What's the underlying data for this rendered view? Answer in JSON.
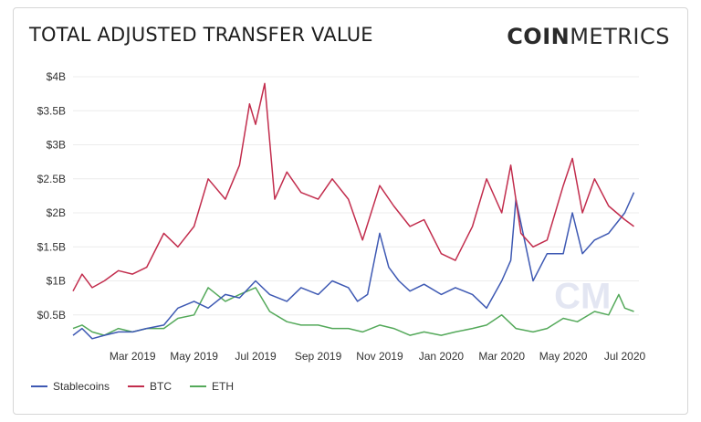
{
  "header": {
    "title": "TOTAL ADJUSTED TRANSFER VALUE",
    "brand_bold": "COIN",
    "brand_regular": "METRICS"
  },
  "watermark": "CM",
  "chart_data": {
    "type": "line",
    "title": "TOTAL ADJUSTED TRANSFER VALUE",
    "xlabel": "",
    "ylabel": "",
    "x_range": [
      "2019-01-01",
      "2020-07-15"
    ],
    "ylim": [
      0,
      4000000000
    ],
    "y_ticks": [
      {
        "value": 500000000,
        "label": "$0.5B"
      },
      {
        "value": 1000000000,
        "label": "$1B"
      },
      {
        "value": 1500000000,
        "label": "$1.5B"
      },
      {
        "value": 2000000000,
        "label": "$2B"
      },
      {
        "value": 2500000000,
        "label": "$2.5B"
      },
      {
        "value": 3000000000,
        "label": "$3B"
      },
      {
        "value": 3500000000,
        "label": "$3.5B"
      },
      {
        "value": 4000000000,
        "label": "$4B"
      }
    ],
    "x_ticks": [
      {
        "date": "2019-03-01",
        "label": "Mar 2019"
      },
      {
        "date": "2019-05-01",
        "label": "May 2019"
      },
      {
        "date": "2019-07-01",
        "label": "Jul 2019"
      },
      {
        "date": "2019-09-01",
        "label": "Sep 2019"
      },
      {
        "date": "2019-11-01",
        "label": "Nov 2019"
      },
      {
        "date": "2020-01-01",
        "label": "Jan 2020"
      },
      {
        "date": "2020-03-01",
        "label": "Mar 2020"
      },
      {
        "date": "2020-05-01",
        "label": "May 2020"
      },
      {
        "date": "2020-07-01",
        "label": "Jul 2020"
      }
    ],
    "grid": true,
    "legend_position": "bottom-left",
    "series": [
      {
        "name": "Stablecoins",
        "color": "#3e59b3",
        "x": [
          "2019-01-01",
          "2019-01-10",
          "2019-01-20",
          "2019-02-01",
          "2019-02-15",
          "2019-03-01",
          "2019-03-15",
          "2019-04-01",
          "2019-04-15",
          "2019-05-01",
          "2019-05-15",
          "2019-06-01",
          "2019-06-15",
          "2019-07-01",
          "2019-07-15",
          "2019-08-01",
          "2019-08-15",
          "2019-09-01",
          "2019-09-15",
          "2019-10-01",
          "2019-10-10",
          "2019-10-20",
          "2019-11-01",
          "2019-11-10",
          "2019-11-20",
          "2019-12-01",
          "2019-12-15",
          "2020-01-01",
          "2020-01-15",
          "2020-02-01",
          "2020-02-15",
          "2020-03-01",
          "2020-03-10",
          "2020-03-15",
          "2020-03-25",
          "2020-04-01",
          "2020-04-15",
          "2020-05-01",
          "2020-05-10",
          "2020-05-20",
          "2020-06-01",
          "2020-06-15",
          "2020-07-01",
          "2020-07-10"
        ],
        "values": [
          200000000,
          300000000,
          150000000,
          200000000,
          250000000,
          250000000,
          300000000,
          350000000,
          600000000,
          700000000,
          600000000,
          800000000,
          750000000,
          1000000000,
          800000000,
          700000000,
          900000000,
          800000000,
          1000000000,
          900000000,
          700000000,
          800000000,
          1700000000,
          1200000000,
          1000000000,
          850000000,
          950000000,
          800000000,
          900000000,
          800000000,
          600000000,
          1000000000,
          1300000000,
          2200000000,
          1500000000,
          1000000000,
          1400000000,
          1400000000,
          2000000000,
          1400000000,
          1600000000,
          1700000000,
          2000000000,
          2300000000
        ]
      },
      {
        "name": "BTC",
        "color": "#c22d4d",
        "x": [
          "2019-01-01",
          "2019-01-10",
          "2019-01-20",
          "2019-02-01",
          "2019-02-15",
          "2019-03-01",
          "2019-03-15",
          "2019-04-01",
          "2019-04-15",
          "2019-05-01",
          "2019-05-15",
          "2019-06-01",
          "2019-06-15",
          "2019-06-25",
          "2019-07-01",
          "2019-07-10",
          "2019-07-20",
          "2019-08-01",
          "2019-08-15",
          "2019-09-01",
          "2019-09-15",
          "2019-10-01",
          "2019-10-15",
          "2019-11-01",
          "2019-11-15",
          "2019-12-01",
          "2019-12-15",
          "2020-01-01",
          "2020-01-15",
          "2020-02-01",
          "2020-02-15",
          "2020-03-01",
          "2020-03-10",
          "2020-03-20",
          "2020-04-01",
          "2020-04-15",
          "2020-05-01",
          "2020-05-10",
          "2020-05-20",
          "2020-06-01",
          "2020-06-15",
          "2020-07-01",
          "2020-07-10"
        ],
        "values": [
          850000000,
          1100000000,
          900000000,
          1000000000,
          1150000000,
          1100000000,
          1200000000,
          1700000000,
          1500000000,
          1800000000,
          2500000000,
          2200000000,
          2700000000,
          3600000000,
          3300000000,
          3900000000,
          2200000000,
          2600000000,
          2300000000,
          2200000000,
          2500000000,
          2200000000,
          1600000000,
          2400000000,
          2100000000,
          1800000000,
          1900000000,
          1400000000,
          1300000000,
          1800000000,
          2500000000,
          2000000000,
          2700000000,
          1700000000,
          1500000000,
          1600000000,
          2400000000,
          2800000000,
          2000000000,
          2500000000,
          2100000000,
          1900000000,
          1800000000
        ]
      },
      {
        "name": "ETH",
        "color": "#54a95a",
        "x": [
          "2019-01-01",
          "2019-01-10",
          "2019-01-20",
          "2019-02-01",
          "2019-02-15",
          "2019-03-01",
          "2019-03-15",
          "2019-04-01",
          "2019-04-15",
          "2019-05-01",
          "2019-05-15",
          "2019-06-01",
          "2019-06-15",
          "2019-07-01",
          "2019-07-15",
          "2019-08-01",
          "2019-08-15",
          "2019-09-01",
          "2019-09-15",
          "2019-10-01",
          "2019-10-15",
          "2019-11-01",
          "2019-11-15",
          "2019-12-01",
          "2019-12-15",
          "2020-01-01",
          "2020-01-15",
          "2020-02-01",
          "2020-02-15",
          "2020-03-01",
          "2020-03-15",
          "2020-04-01",
          "2020-04-15",
          "2020-05-01",
          "2020-05-15",
          "2020-06-01",
          "2020-06-15",
          "2020-06-25",
          "2020-07-01",
          "2020-07-10"
        ],
        "values": [
          300000000,
          350000000,
          250000000,
          200000000,
          300000000,
          250000000,
          300000000,
          300000000,
          450000000,
          500000000,
          900000000,
          700000000,
          800000000,
          900000000,
          550000000,
          400000000,
          350000000,
          350000000,
          300000000,
          300000000,
          250000000,
          350000000,
          300000000,
          200000000,
          250000000,
          200000000,
          250000000,
          300000000,
          350000000,
          500000000,
          300000000,
          250000000,
          300000000,
          450000000,
          400000000,
          550000000,
          500000000,
          800000000,
          600000000,
          550000000
        ]
      }
    ]
  }
}
